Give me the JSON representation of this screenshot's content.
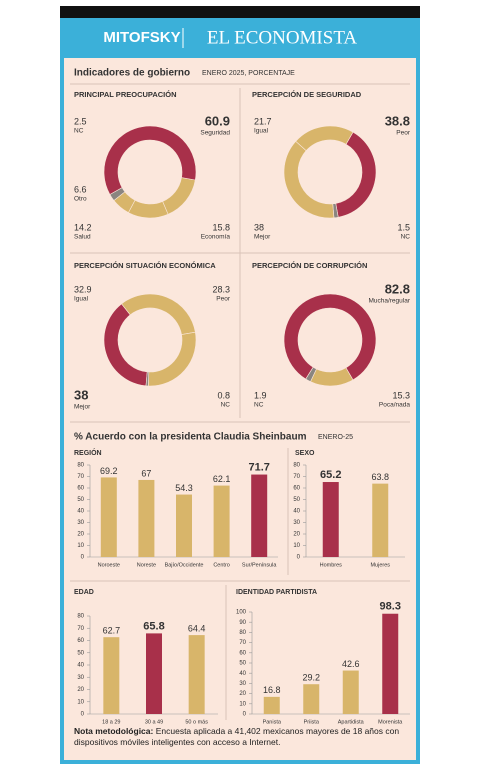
{
  "header": {
    "left": "MITOFSKY",
    "right": "EL ECONOMISTA"
  },
  "section1": {
    "title": "Indicadores de gobierno",
    "subtitle": "ENERO 2025, PORCENTAJE"
  },
  "section2": {
    "title": "% Acuerdo con la presidenta Claudia Sheinbaum",
    "subtitle": "ENERO-25"
  },
  "chart_data": [
    {
      "type": "donut",
      "title": "PRINCIPAL PREOCUPACIÓN",
      "categories": [
        "Economía",
        "Salud",
        "Otro",
        "NC",
        "Seguridad"
      ],
      "values": [
        15.8,
        14.2,
        6.6,
        2.5,
        60.9
      ],
      "colors": [
        "#d8b56a",
        "#d8b56a",
        "#d8b56a",
        "#8a8580",
        "#a8304a"
      ],
      "highlight": 4
    },
    {
      "type": "donut",
      "title": "PERCEPCIÓN DE SEGURIDAD",
      "categories": [
        "Peor",
        "NC",
        "Mejor",
        "Igual"
      ],
      "values": [
        38.8,
        1.5,
        38.0,
        21.7
      ],
      "colors": [
        "#a8304a",
        "#8a8580",
        "#d8b56a",
        "#d8b56a"
      ],
      "highlight": 0
    },
    {
      "type": "donut",
      "title": "PERCEPCIÓN SITUACIÓN ECONÓMICA",
      "categories": [
        "Mejor",
        "Igual",
        "Peor",
        "NC"
      ],
      "values": [
        38.0,
        32.9,
        28.3,
        0.8
      ],
      "colors": [
        "#a8304a",
        "#d8b56a",
        "#d8b56a",
        "#8a8580"
      ],
      "highlight": 0
    },
    {
      "type": "donut",
      "title": "PERCEPCIÓN DE CORRUPCIÓN",
      "categories": [
        "Poca/nada",
        "NC",
        "Mucha/regular"
      ],
      "values": [
        15.3,
        1.9,
        82.8
      ],
      "colors": [
        "#d8b56a",
        "#8a8580",
        "#a8304a"
      ],
      "highlight": 2
    },
    {
      "type": "bar",
      "title": "REGIÓN",
      "categories": [
        "Noroeste",
        "Noreste",
        "Bajío/Occidente",
        "Centro",
        "Sur/Península"
      ],
      "values": [
        69.2,
        67.0,
        54.3,
        62.1,
        71.7
      ],
      "colors": [
        "#d8b56a",
        "#d8b56a",
        "#d8b56a",
        "#d8b56a",
        "#a8304a"
      ],
      "highlight": 4,
      "ylim": [
        0,
        80
      ],
      "yticks": [
        0,
        10,
        20,
        30,
        40,
        50,
        60,
        70,
        80
      ]
    },
    {
      "type": "bar",
      "title": "SEXO",
      "categories": [
        "Hombres",
        "Mujeres"
      ],
      "values": [
        65.2,
        63.8
      ],
      "colors": [
        "#a8304a",
        "#d8b56a"
      ],
      "highlight": 0,
      "ylim": [
        0,
        80
      ],
      "yticks": [
        0,
        10,
        20,
        30,
        40,
        50,
        60,
        70,
        80
      ]
    },
    {
      "type": "bar",
      "title": "EDAD",
      "categories": [
        "18 a 29",
        "30 a 49",
        "50 o más"
      ],
      "values": [
        62.7,
        65.8,
        64.4
      ],
      "colors": [
        "#d8b56a",
        "#a8304a",
        "#d8b56a"
      ],
      "highlight": 1,
      "ylim": [
        0,
        80
      ],
      "yticks": [
        0,
        10,
        20,
        30,
        40,
        50,
        60,
        70,
        80
      ]
    },
    {
      "type": "bar",
      "title": "IDENTIDAD PARTIDISTA",
      "categories": [
        "Panista",
        "Priista",
        "Apartidista",
        "Morenista"
      ],
      "values": [
        16.8,
        29.2,
        42.6,
        98.3
      ],
      "colors": [
        "#d8b56a",
        "#d8b56a",
        "#d8b56a",
        "#a8304a"
      ],
      "highlight": 3,
      "ylim": [
        0,
        100
      ],
      "yticks": [
        0,
        10,
        20,
        30,
        40,
        50,
        60,
        70,
        80,
        90,
        100
      ]
    }
  ],
  "note": {
    "label": "Nota metodológica:",
    "text": "Encuesta aplicada a 41,402 mexicanos mayores de 18 años con dispositivos móviles inteligentes con acceso a Internet."
  }
}
